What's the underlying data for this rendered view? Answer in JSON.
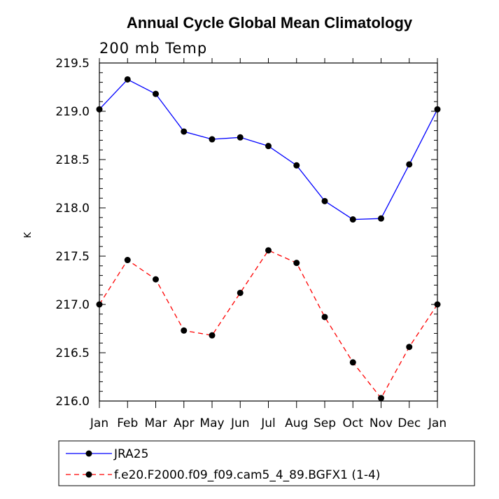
{
  "chart_data": {
    "type": "line",
    "title": "Annual Cycle Global Mean Climatology",
    "subtitle": "200 mb Temp",
    "xlabel": "",
    "ylabel": "K",
    "categories": [
      "Jan",
      "Feb",
      "Mar",
      "Apr",
      "May",
      "Jun",
      "Jul",
      "Aug",
      "Sep",
      "Oct",
      "Nov",
      "Dec",
      "Jan"
    ],
    "ylim": [
      216.0,
      219.5
    ],
    "yticks": [
      "216.0",
      "216.5",
      "217.0",
      "217.5",
      "218.0",
      "218.5",
      "219.0",
      "219.5"
    ],
    "grid": false,
    "legend_position": "bottom",
    "series": [
      {
        "name": "JRA25",
        "color": "#0000ff",
        "line_style": "solid",
        "marker": "filled-circle",
        "values": [
          219.02,
          219.33,
          219.18,
          218.79,
          218.71,
          218.73,
          218.64,
          218.44,
          218.07,
          217.88,
          217.89,
          218.45,
          219.02
        ]
      },
      {
        "name": "f.e20.F2000.f09_f09.cam5_4_89.BGFX1 (1-4)",
        "color": "#ff0000",
        "line_style": "dashed",
        "marker": "filled-circle",
        "values": [
          217.0,
          217.46,
          217.26,
          216.73,
          216.68,
          217.12,
          217.56,
          217.43,
          216.87,
          216.4,
          216.03,
          216.56,
          217.0
        ]
      }
    ]
  }
}
